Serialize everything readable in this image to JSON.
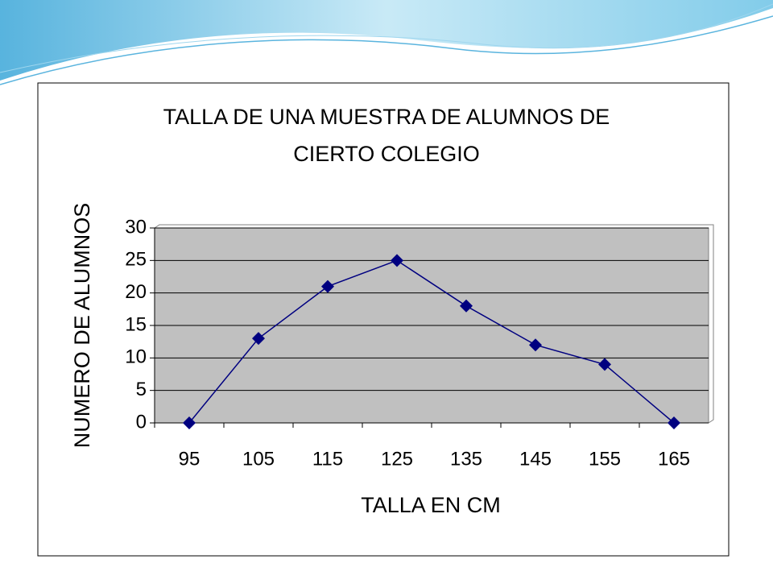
{
  "chart_data": {
    "type": "line",
    "title": "TALLA DE UNA MUESTRA DE ALUMNOS DE CIERTO COLEGIO",
    "x_label": "TALLA EN CM",
    "y_label": "NUMERO DE ALUMNOS",
    "categories": [
      "95",
      "105",
      "115",
      "125",
      "135",
      "145",
      "155",
      "165"
    ],
    "values": [
      0,
      13,
      21,
      25,
      18,
      12,
      9,
      0
    ],
    "color": "#000080",
    "ylim": [
      0,
      30
    ],
    "yticks": [
      0,
      5,
      10,
      15,
      20,
      25,
      30
    ],
    "grid": true,
    "plot_background": "#c0c0c0"
  }
}
